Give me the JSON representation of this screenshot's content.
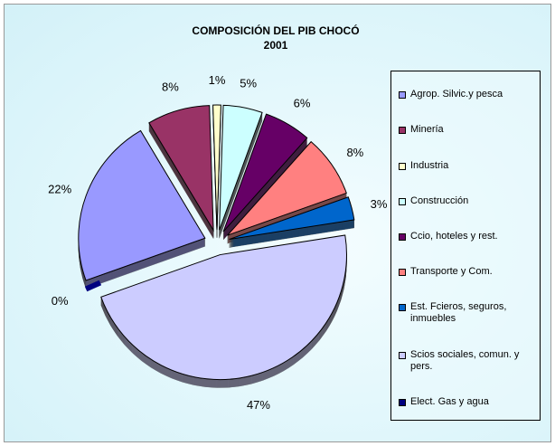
{
  "chart_data": {
    "type": "pie",
    "title": "COMPOSICIÓN DEL PIB CHOCÓ",
    "subtitle": "2001",
    "categories": [
      "Agrop. Silvic.y pesca",
      "Minería",
      "Industria",
      "Construcción",
      "Ccio, hoteles y rest.",
      "Transporte y Com.",
      "Est. Fcieros, seguros, inmuebles",
      "Scios sociales, comun. y pers.",
      "Elect. Gas y agua"
    ],
    "values": [
      22,
      8,
      1,
      5,
      6,
      8,
      3,
      47,
      0
    ],
    "value_labels": [
      "22%",
      "8%",
      "1%",
      "5%",
      "6%",
      "8%",
      "3%",
      "47%",
      "0%"
    ],
    "colors": [
      "#9999ff",
      "#993366",
      "#ffffcc",
      "#ccffff",
      "#660066",
      "#ff8080",
      "#0066cc",
      "#ccccff",
      "#000080"
    ],
    "legend": "right"
  }
}
